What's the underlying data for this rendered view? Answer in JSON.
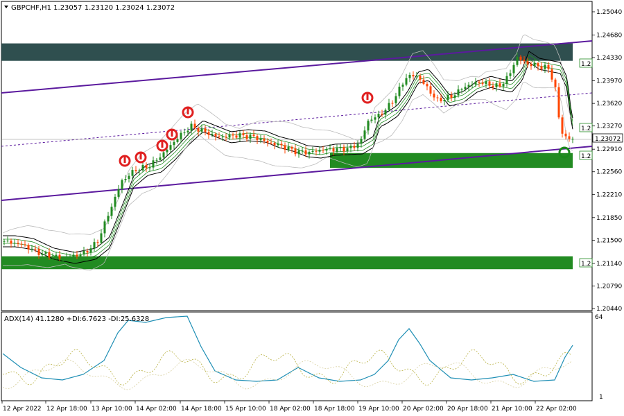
{
  "header": {
    "symbol": "GBPCHF,H1",
    "open": "1.23057",
    "high": "1.23120",
    "low": "1.23024",
    "close": "1.23072"
  },
  "indicator": {
    "label": "ADX(14) 41.1280 +DI:6.7623 -DI:25.6328",
    "scale_top": "64",
    "scale_bottom": "1"
  },
  "current_price_label": "1.23072",
  "zone_price_labels": [
    "1.2",
    "1.2",
    "1.2",
    "1.2"
  ],
  "price_axis": {
    "ticks": [
      "1.25040",
      "1.24680",
      "1.24330",
      "1.23970",
      "1.23620",
      "1.23270",
      "1.22910",
      "1.22560",
      "1.22210",
      "1.21850",
      "1.21500",
      "1.21140",
      "1.20790",
      "1.20440"
    ],
    "values": [
      1.2504,
      1.2468,
      1.2433,
      1.2397,
      1.2362,
      1.2327,
      1.2291,
      1.2256,
      1.2221,
      1.2185,
      1.215,
      1.2114,
      1.2079,
      1.2044
    ]
  },
  "time_axis": {
    "labels": [
      "12 Apr 2022",
      "12 Apr 18:00",
      "13 Apr 10:00",
      "14 Apr 02:00",
      "14 Apr 18:00",
      "15 Apr 10:00",
      "18 Apr 02:00",
      "18 Apr 18:00",
      "19 Apr 10:00",
      "20 Apr 02:00",
      "20 Apr 18:00",
      "21 Apr 10:00",
      "22 Apr 02:00"
    ]
  },
  "zones": [
    {
      "name": "resistance-zone",
      "color": "#2f4f4f",
      "top": 1.2455,
      "bottom": 1.2428
    },
    {
      "name": "support-zone-upper",
      "color": "#228b22",
      "top": 1.2285,
      "bottom": 1.2262
    },
    {
      "name": "support-zone-lower",
      "color": "#228b22",
      "top": 1.2125,
      "bottom": 1.2105
    }
  ],
  "colors": {
    "bull": "#228b22",
    "bear": "#ff4500",
    "channel": "#5b1a9e",
    "signal_red": "#e02020",
    "signal_green": "#1a8a1a",
    "adx": "#1f8fb5",
    "plus_di": "#b8b040",
    "minus_di": "#d8d0a0"
  }
}
